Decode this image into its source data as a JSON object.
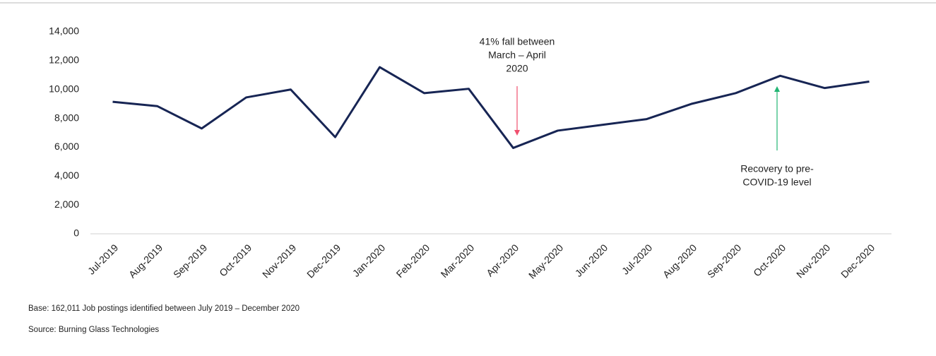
{
  "chart_data": {
    "type": "line",
    "categories": [
      "Jul-2019",
      "Aug-2019",
      "Sep-2019",
      "Oct-2019",
      "Nov-2019",
      "Dec-2019",
      "Jan-2020",
      "Feb-2020",
      "Mar-2020",
      "Apr-2020",
      "May-2020",
      "Jun-2020",
      "Jul-2020",
      "Aug-2020",
      "Sep-2020",
      "Oct-2020",
      "Nov-2020",
      "Dec-2020"
    ],
    "series": [
      {
        "color": "#172554",
        "values": [
          9150,
          8850,
          7300,
          9450,
          10000,
          6700,
          11550,
          9750,
          10050,
          5950,
          7150,
          7550,
          7950,
          9000,
          9750,
          10950,
          10100,
          10550
        ]
      }
    ],
    "ylim": [
      0,
      14000
    ],
    "yticks": [
      0,
      {
        "value": 2000,
        "label": "2,000"
      },
      {
        "value": 4000,
        "label": "4,000"
      },
      {
        "value": 6000,
        "label": "6,000"
      },
      {
        "value": 8000,
        "label": "8,000"
      },
      {
        "value": 10000,
        "label": "10,000"
      },
      {
        "value": 12000,
        "label": "12,000"
      },
      {
        "value": 14000,
        "label": "14,000"
      }
    ],
    "annotations": [
      {
        "lines": [
          "41% fall between",
          "March – April",
          "2020"
        ],
        "color": "#f0506e"
      },
      {
        "lines": [
          "Recovery to pre-",
          "COVID-19 level"
        ],
        "color": "#22b573"
      }
    ],
    "notes": [
      "Base: 162,011 Job postings identified between July 2019 – December 2020",
      "Source: Burning Glass Technologies"
    ]
  }
}
